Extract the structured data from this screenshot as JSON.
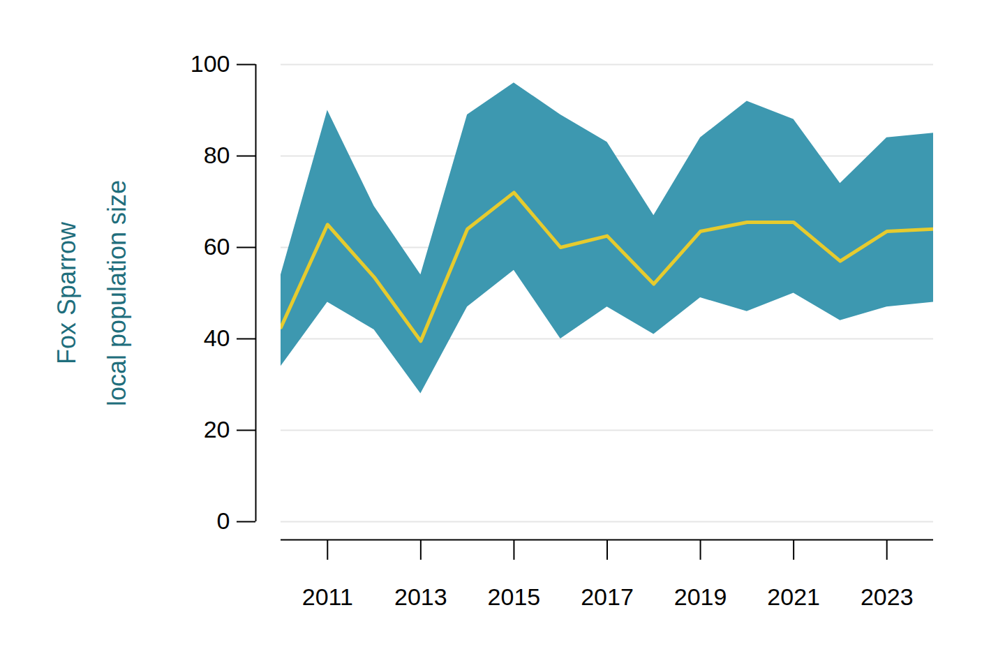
{
  "chart_data": {
    "type": "line",
    "ylabel": "Fox Sparrow\nlocal population size",
    "x": [
      2010,
      2011,
      2012,
      2013,
      2014,
      2015,
      2016,
      2017,
      2018,
      2019,
      2020,
      2021,
      2022,
      2023,
      2024
    ],
    "series": [
      {
        "type": "area",
        "color": "#3d98b0",
        "lower": [
          34,
          48,
          42,
          28,
          47,
          55,
          40,
          47,
          41,
          49,
          46,
          50,
          44,
          47,
          48
        ],
        "upper": [
          54,
          90,
          69,
          54,
          89,
          96,
          89,
          83,
          67,
          84,
          92,
          88,
          74,
          84,
          85
        ]
      },
      {
        "type": "line",
        "color": "#e6cb2e",
        "values": [
          42.5,
          65,
          53.5,
          39.5,
          64,
          72,
          60,
          62.5,
          52,
          63.5,
          65.5,
          65.5,
          57,
          63.5,
          64
        ]
      }
    ],
    "xlim": [
      2010,
      2024
    ],
    "xticks": [
      2011,
      2013,
      2015,
      2017,
      2019,
      2021,
      2023
    ],
    "ylim": [
      0,
      100
    ],
    "yticks": [
      0,
      20,
      40,
      60,
      80,
      100
    ],
    "grid": true
  }
}
